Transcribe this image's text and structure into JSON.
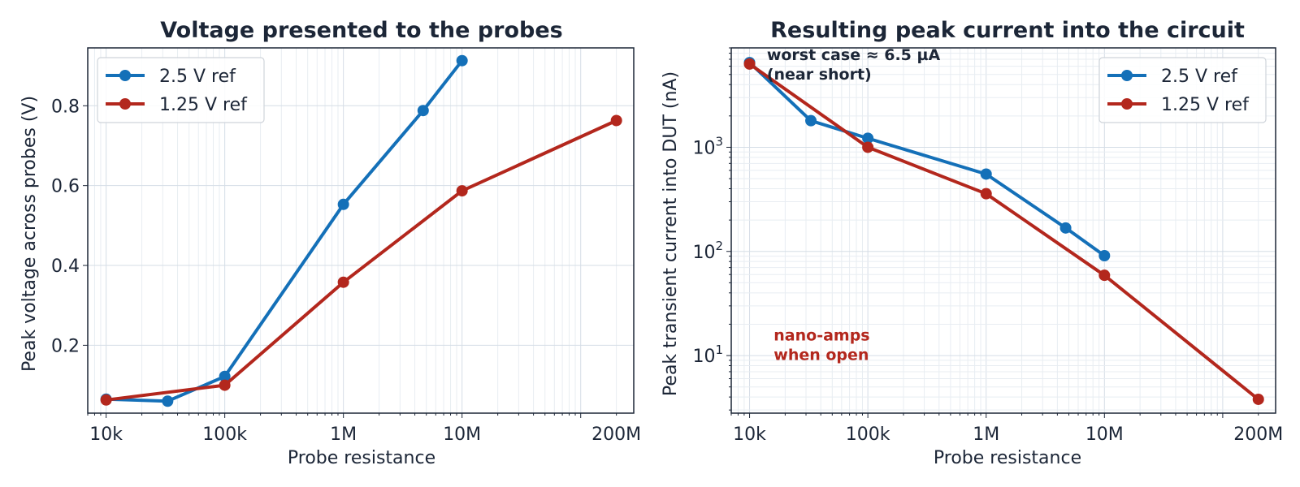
{
  "chart_data": [
    {
      "type": "line",
      "title": "Voltage presented to the probes",
      "xlabel": "Probe resistance",
      "ylabel": "Peak voltage across probes (V)",
      "xscale": "log",
      "yscale": "linear",
      "xlim": [
        7000,
        280000000
      ],
      "ylim": [
        0.03,
        0.945
      ],
      "xticks": [
        {
          "value": 10000,
          "label": "10k"
        },
        {
          "value": 100000,
          "label": "100k"
        },
        {
          "value": 1000000,
          "label": "1M"
        },
        {
          "value": 10000000,
          "label": "10M"
        },
        {
          "value": 200000000,
          "label": "200M"
        }
      ],
      "yticks": [
        {
          "value": 0.2,
          "label": "0.2"
        },
        {
          "value": 0.4,
          "label": "0.4"
        },
        {
          "value": 0.6,
          "label": "0.6"
        },
        {
          "value": 0.8,
          "label": "0.8"
        }
      ],
      "grid": true,
      "legend": "upper left",
      "series": [
        {
          "name": "2.5 V ref",
          "color": "#1470b8",
          "x": [
            10000,
            33000,
            100000,
            1000000,
            4700000,
            10000000
          ],
          "y": [
            0.065,
            0.06,
            0.122,
            0.553,
            0.788,
            0.913
          ]
        },
        {
          "name": "1.25 V ref",
          "color": "#b3271d",
          "x": [
            10000,
            100000,
            1000000,
            10000000,
            200000000
          ],
          "y": [
            0.063,
            0.1,
            0.358,
            0.587,
            0.763
          ]
        }
      ],
      "annotations": []
    },
    {
      "type": "line",
      "title": "Resulting peak current into the circuit",
      "xlabel": "Probe resistance",
      "ylabel": "Peak transient current into DUT (nA)",
      "xscale": "log",
      "yscale": "log",
      "xlim": [
        7000,
        280000000
      ],
      "ylim": [
        2.8,
        9000
      ],
      "xticks": [
        {
          "value": 10000,
          "label": "10k"
        },
        {
          "value": 100000,
          "label": "100k"
        },
        {
          "value": 1000000,
          "label": "1M"
        },
        {
          "value": 10000000,
          "label": "10M"
        },
        {
          "value": 200000000,
          "label": "200M"
        }
      ],
      "yticks": [
        {
          "value": 10,
          "base": "10",
          "exp": "1"
        },
        {
          "value": 100,
          "base": "10",
          "exp": "2"
        },
        {
          "value": 1000,
          "base": "10",
          "exp": "3"
        }
      ],
      "grid": true,
      "legend": "upper right",
      "series": [
        {
          "name": "2.5 V ref",
          "color": "#1470b8",
          "x": [
            10000,
            33000,
            100000,
            1000000,
            4700000,
            10000000
          ],
          "y": [
            6500,
            1800,
            1220,
            553,
            168,
            91
          ]
        },
        {
          "name": "1.25 V ref",
          "color": "#b3271d",
          "x": [
            10000,
            100000,
            1000000,
            10000000,
            200000000
          ],
          "y": [
            6300,
            1000,
            358,
            59,
            3.8
          ]
        }
      ],
      "annotations": [
        {
          "lines": [
            "worst case ≈ 6.5 µA",
            "(near short)"
          ],
          "color": "#1c2637",
          "x": 14000,
          "y": 6900
        },
        {
          "lines": [
            "nano-amps",
            "when open"
          ],
          "color": "#b3271d",
          "x": 16000,
          "y": 14
        }
      ]
    }
  ]
}
